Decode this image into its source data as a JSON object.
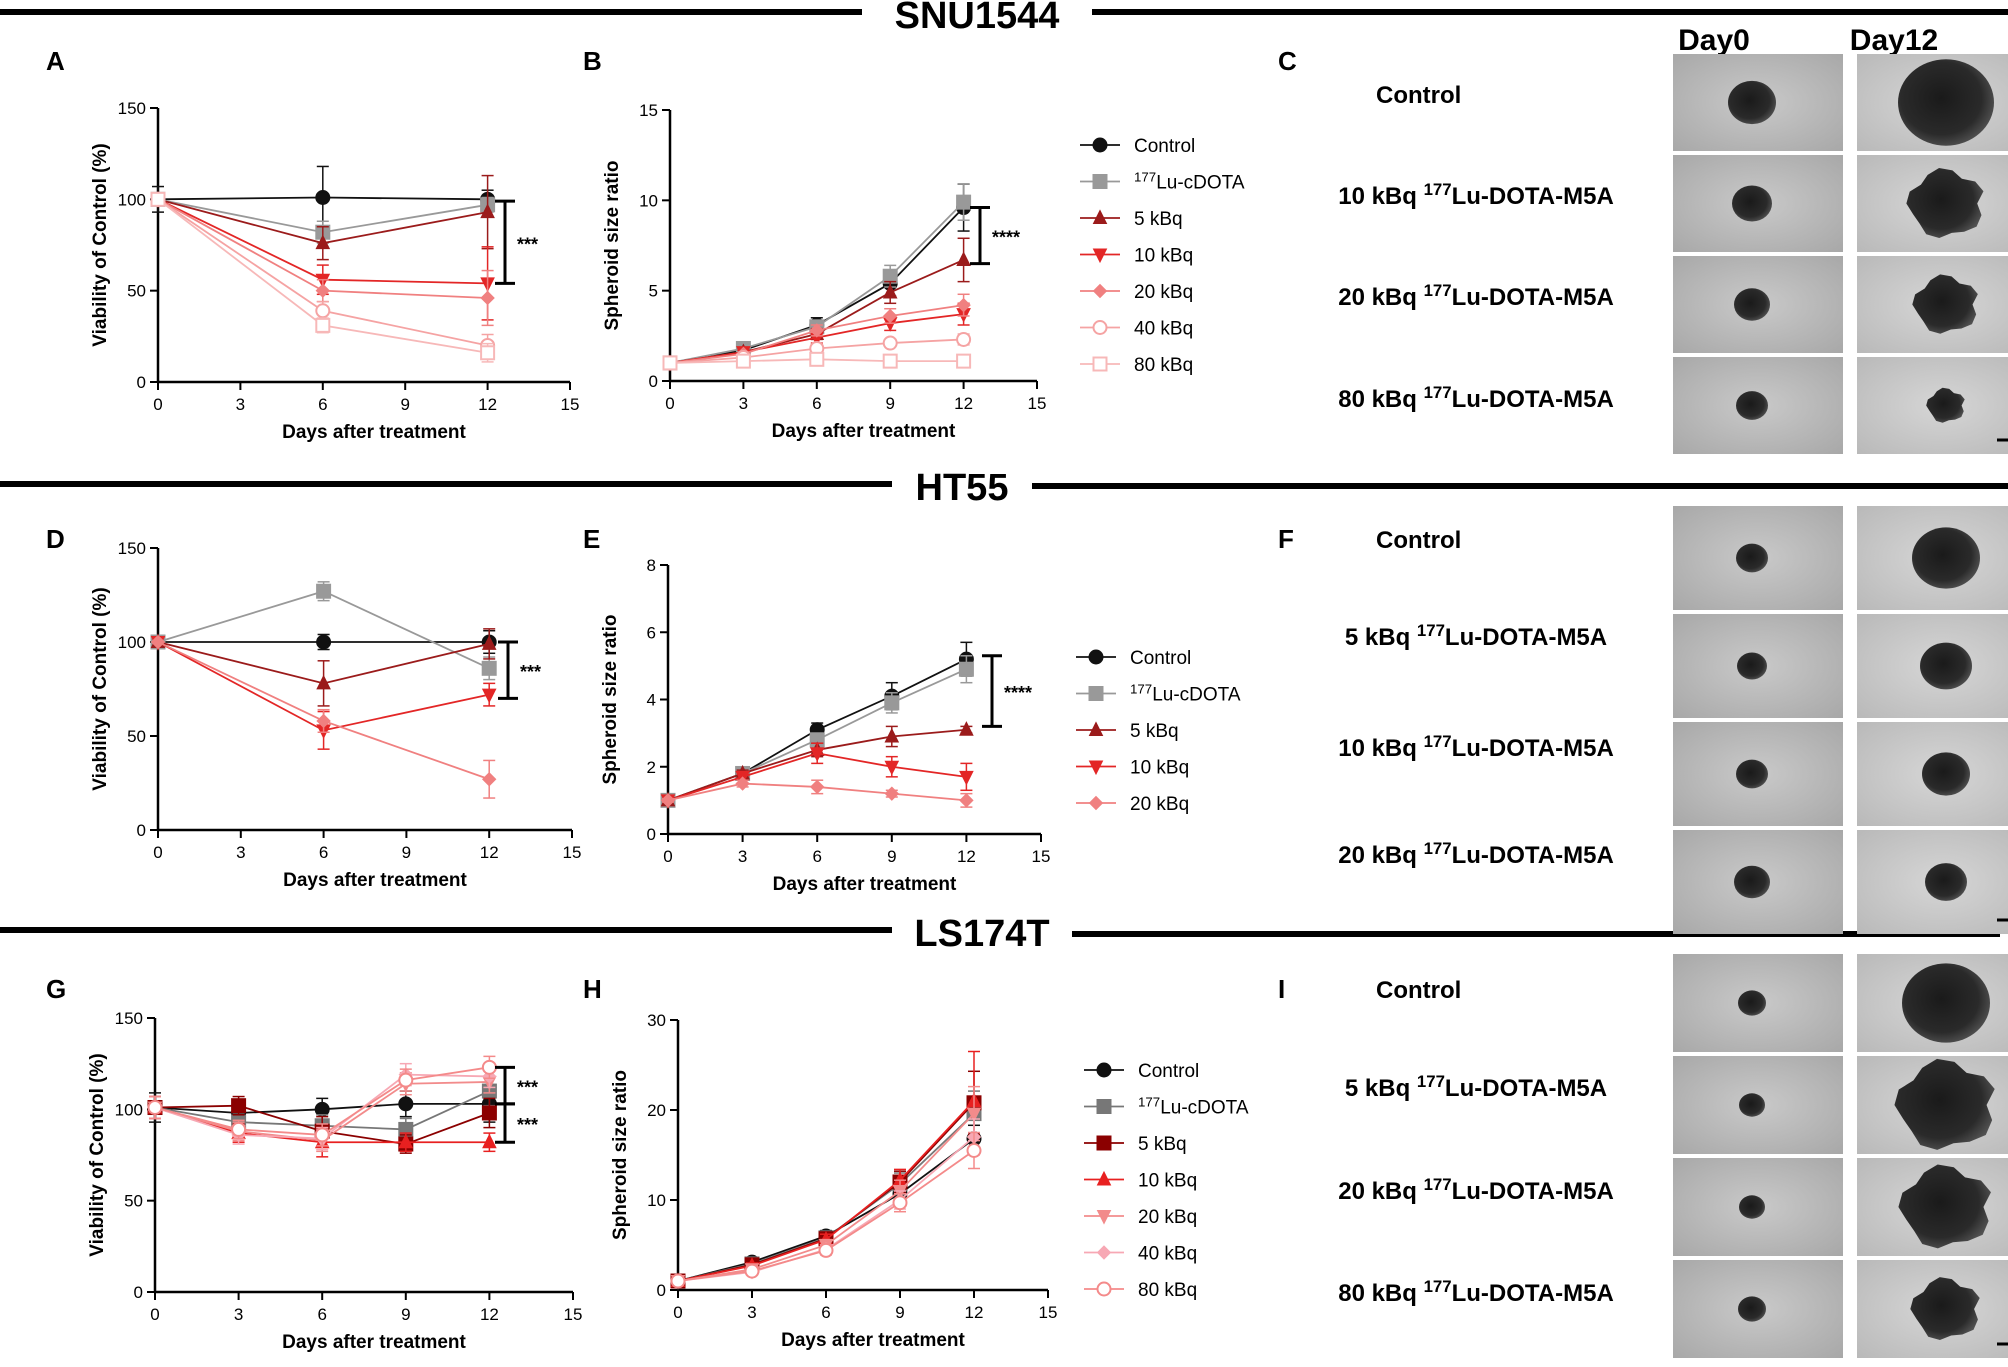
{
  "colors": {
    "control": "#111111",
    "lu_cdota": "#999999",
    "k5_dark": "#9b1b1b",
    "k10": "#e32626",
    "k20": "#f08080",
    "k40": "#f5a3a3",
    "k80": "#f7b8b8",
    "k5_ls": "#8b0000",
    "k10_ls": "#e82020",
    "k20_ls": "#f28b8b",
    "k40_ls": "#f7a8b4",
    "k80_ls": "#f48a8a"
  },
  "rows": [
    {
      "title": "SNU1544"
    },
    {
      "title": "HT55"
    },
    {
      "title": "LS174T"
    }
  ],
  "image_columns": {
    "day0": "Day0",
    "day12": "Day12"
  },
  "chart_data": [
    {
      "id": "A",
      "letter": "A",
      "type": "line",
      "xlabel": "Days after treatment",
      "ylabel": "Viability of Control (%)",
      "xlim": [
        0,
        15
      ],
      "ylim": [
        0,
        150
      ],
      "xticks": [
        "0",
        "3",
        "6",
        "9",
        "12",
        "15"
      ],
      "yticks": [
        "0",
        "50",
        "100",
        "150"
      ],
      "x": [
        0,
        6,
        12
      ],
      "series": [
        {
          "name": "Control",
          "color": "#111111",
          "marker": "circle",
          "values": [
            100,
            101,
            100
          ],
          "err": [
            7,
            17,
            5
          ]
        },
        {
          "name": "177Lu-cDOTA",
          "color": "#999999",
          "marker": "square",
          "values": [
            100,
            82,
            97
          ],
          "err": [
            0,
            6,
            4
          ]
        },
        {
          "name": "5 kBq",
          "color": "#9b1b1b",
          "marker": "triangle",
          "values": [
            100,
            76,
            93
          ],
          "err": [
            0,
            9,
            20
          ]
        },
        {
          "name": "10 kBq",
          "color": "#e32626",
          "marker": "triangle-down",
          "values": [
            100,
            56,
            54
          ],
          "err": [
            0,
            8,
            20
          ]
        },
        {
          "name": "20 kBq",
          "color": "#f08080",
          "marker": "diamond",
          "values": [
            100,
            50,
            46
          ],
          "err": [
            0,
            6,
            15
          ]
        },
        {
          "name": "40 kBq",
          "color": "#f5a3a3",
          "marker": "circle-open",
          "values": [
            100,
            39,
            20
          ],
          "err": [
            0,
            5,
            6
          ]
        },
        {
          "name": "80 kBq",
          "color": "#f7b8b8",
          "marker": "square-open",
          "values": [
            100,
            31,
            16
          ],
          "err": [
            0,
            4,
            5
          ]
        }
      ],
      "significance": [
        {
          "label": "***",
          "from": 99,
          "to": 54
        }
      ]
    },
    {
      "id": "B",
      "letter": "B",
      "type": "line",
      "xlabel": "Days after treatment",
      "ylabel": "Spheroid size ratio",
      "xlim": [
        0,
        15
      ],
      "ylim": [
        0,
        15
      ],
      "xticks": [
        "0",
        "3",
        "6",
        "9",
        "12",
        "15"
      ],
      "yticks": [
        "0",
        "5",
        "10",
        "15"
      ],
      "x": [
        0,
        3,
        6,
        9,
        12
      ],
      "series": [
        {
          "name": "Control",
          "color": "#111111",
          "marker": "circle",
          "values": [
            1,
            1.7,
            3.1,
            5.4,
            9.6
          ],
          "err": [
            0.1,
            0.2,
            0.4,
            0.7,
            1.3
          ]
        },
        {
          "name": "177Lu-cDOTA",
          "color": "#999999",
          "marker": "square",
          "values": [
            1,
            1.8,
            3.0,
            5.8,
            9.9
          ],
          "err": [
            0.1,
            0.2,
            0.3,
            0.6,
            1.0
          ]
        },
        {
          "name": "5 kBq",
          "color": "#9b1b1b",
          "marker": "triangle",
          "values": [
            1,
            1.6,
            2.6,
            4.9,
            6.7
          ],
          "err": [
            0.1,
            0.2,
            0.3,
            0.6,
            1.2
          ]
        },
        {
          "name": "10 kBq",
          "color": "#e32626",
          "marker": "triangle-down",
          "values": [
            1,
            1.6,
            2.4,
            3.2,
            3.7
          ],
          "err": [
            0.1,
            0.1,
            0.3,
            0.4,
            0.6
          ]
        },
        {
          "name": "20 kBq",
          "color": "#f08080",
          "marker": "diamond",
          "values": [
            1,
            1.5,
            2.8,
            3.6,
            4.2
          ],
          "err": [
            0.1,
            0.1,
            0.3,
            0.4,
            0.6
          ]
        },
        {
          "name": "40 kBq",
          "color": "#f5a3a3",
          "marker": "circle-open",
          "values": [
            1,
            1.3,
            1.8,
            2.1,
            2.3
          ],
          "err": [
            0.1,
            0.1,
            0.2,
            0.2,
            0.3
          ]
        },
        {
          "name": "80 kBq",
          "color": "#f7b8b8",
          "marker": "square-open",
          "values": [
            1,
            1.1,
            1.2,
            1.1,
            1.1
          ],
          "err": [
            0.1,
            0.1,
            0.1,
            0.1,
            0.1
          ]
        }
      ],
      "legend": [
        "Control",
        "177Lu-cDOTA",
        "5 kBq",
        "10 kBq",
        "20 kBq",
        "40 kBq",
        "80 kBq"
      ],
      "significance": [
        {
          "label": "****",
          "from": 9.6,
          "to": 6.5
        }
      ]
    },
    {
      "id": "D",
      "letter": "D",
      "type": "line",
      "xlabel": "Days after treatment",
      "ylabel": "Viability of Control (%)",
      "xlim": [
        0,
        15
      ],
      "ylim": [
        0,
        150
      ],
      "xticks": [
        "0",
        "3",
        "6",
        "9",
        "12",
        "15"
      ],
      "yticks": [
        "0",
        "50",
        "100",
        "150"
      ],
      "x": [
        0,
        6,
        12
      ],
      "series": [
        {
          "name": "Control",
          "color": "#111111",
          "marker": "circle",
          "values": [
            100,
            100,
            100
          ],
          "err": [
            2,
            4,
            6
          ]
        },
        {
          "name": "177Lu-cDOTA",
          "color": "#999999",
          "marker": "square",
          "values": [
            100,
            127,
            86
          ],
          "err": [
            0,
            5,
            6
          ]
        },
        {
          "name": "5 kBq",
          "color": "#9b1b1b",
          "marker": "triangle",
          "values": [
            100,
            78,
            99
          ],
          "err": [
            0,
            12,
            8
          ]
        },
        {
          "name": "10 kBq",
          "color": "#e32626",
          "marker": "triangle-down",
          "values": [
            100,
            53,
            72
          ],
          "err": [
            0,
            10,
            6
          ]
        },
        {
          "name": "20 kBq",
          "color": "#f08080",
          "marker": "diamond",
          "values": [
            100,
            58,
            27
          ],
          "err": [
            0,
            6,
            10
          ]
        }
      ],
      "significance": [
        {
          "label": "***",
          "from": 100,
          "to": 70
        }
      ]
    },
    {
      "id": "E",
      "letter": "E",
      "type": "line",
      "xlabel": "Days after treatment",
      "ylabel": "Spheroid size ratio",
      "xlim": [
        0,
        15
      ],
      "ylim": [
        0,
        8
      ],
      "xticks": [
        "0",
        "3",
        "6",
        "9",
        "12",
        "15"
      ],
      "yticks": [
        "0",
        "2",
        "4",
        "6",
        "8"
      ],
      "x": [
        0,
        3,
        6,
        9,
        12
      ],
      "series": [
        {
          "name": "Control",
          "color": "#111111",
          "marker": "circle",
          "values": [
            1,
            1.8,
            3.1,
            4.1,
            5.2
          ],
          "err": [
            0.05,
            0.1,
            0.2,
            0.4,
            0.5
          ]
        },
        {
          "name": "177Lu-cDOTA",
          "color": "#999999",
          "marker": "square",
          "values": [
            1,
            1.8,
            2.8,
            3.9,
            4.9
          ],
          "err": [
            0.05,
            0.1,
            0.2,
            0.3,
            0.4
          ]
        },
        {
          "name": "5 kBq",
          "color": "#9b1b1b",
          "marker": "triangle",
          "values": [
            1,
            1.8,
            2.5,
            2.9,
            3.1
          ],
          "err": [
            0.05,
            0.1,
            0.2,
            0.3,
            0.1
          ]
        },
        {
          "name": "10 kBq",
          "color": "#e32626",
          "marker": "triangle-down",
          "values": [
            1,
            1.7,
            2.4,
            2.0,
            1.7
          ],
          "err": [
            0.05,
            0.1,
            0.3,
            0.3,
            0.4
          ]
        },
        {
          "name": "20 kBq",
          "color": "#f08080",
          "marker": "diamond",
          "values": [
            1,
            1.5,
            1.4,
            1.2,
            1.0
          ],
          "err": [
            0.05,
            0.1,
            0.2,
            0.1,
            0.2
          ]
        }
      ],
      "legend": [
        "Control",
        "177Lu-cDOTA",
        "5 kBq",
        "10 kBq",
        "20 kBq"
      ],
      "significance": [
        {
          "label": "****",
          "from": 5.3,
          "to": 3.2
        }
      ]
    },
    {
      "id": "G",
      "letter": "G",
      "type": "line",
      "xlabel": "Days after treatment",
      "ylabel": "Viability of Control (%)",
      "xlim": [
        0,
        15
      ],
      "ylim": [
        0,
        150
      ],
      "xticks": [
        "0",
        "3",
        "6",
        "9",
        "12",
        "15"
      ],
      "yticks": [
        "0",
        "50",
        "100",
        "150"
      ],
      "x": [
        0,
        3,
        6,
        9,
        12
      ],
      "series": [
        {
          "name": "Control",
          "color": "#111111",
          "marker": "circle",
          "values": [
            101,
            98,
            100,
            103,
            103
          ],
          "err": [
            8,
            5,
            6,
            7,
            10
          ]
        },
        {
          "name": "177Lu-cDOTA",
          "color": "#777777",
          "marker": "square",
          "values": [
            101,
            93,
            91,
            89,
            110
          ],
          "err": [
            6,
            5,
            6,
            6,
            8
          ]
        },
        {
          "name": "5 kBq",
          "color": "#8b0000",
          "marker": "square",
          "values": [
            101,
            102,
            88,
            81,
            98
          ],
          "err": [
            6,
            5,
            8,
            5,
            8
          ]
        },
        {
          "name": "10 kBq",
          "color": "#e82020",
          "marker": "triangle",
          "values": [
            101,
            87,
            82,
            82,
            82
          ],
          "err": [
            6,
            5,
            8,
            5,
            5
          ]
        },
        {
          "name": "20 kBq",
          "color": "#f28b8b",
          "marker": "triangle-down",
          "values": [
            101,
            88,
            83,
            114,
            115
          ],
          "err": [
            6,
            5,
            6,
            6,
            6
          ]
        },
        {
          "name": "40 kBq",
          "color": "#f7a8b4",
          "marker": "diamond",
          "values": [
            101,
            86,
            84,
            119,
            118
          ],
          "err": [
            6,
            5,
            6,
            6,
            6
          ]
        },
        {
          "name": "80 kBq",
          "color": "#f48a8a",
          "marker": "circle-open",
          "values": [
            101,
            89,
            86,
            116,
            123
          ],
          "err": [
            6,
            5,
            6,
            6,
            6
          ]
        }
      ],
      "significance": [
        {
          "label": "***",
          "from": 123,
          "to": 103
        },
        {
          "label": "***",
          "from": 103,
          "to": 82
        }
      ]
    },
    {
      "id": "H",
      "letter": "H",
      "type": "line",
      "xlabel": "Days after treatment",
      "ylabel": "Spheroid size ratio",
      "xlim": [
        0,
        15
      ],
      "ylim": [
        0,
        30
      ],
      "xticks": [
        "0",
        "3",
        "6",
        "9",
        "12",
        "15"
      ],
      "yticks": [
        "0",
        "10",
        "20",
        "30"
      ],
      "x": [
        0,
        3,
        6,
        9,
        12
      ],
      "series": [
        {
          "name": "Control",
          "color": "#111111",
          "marker": "circle",
          "values": [
            1,
            3.1,
            6.0,
            10.7,
            16.8
          ],
          "err": [
            0.2,
            0.3,
            0.6,
            1.0,
            1.5
          ]
        },
        {
          "name": "177Lu-cDOTA",
          "color": "#777777",
          "marker": "square",
          "values": [
            1,
            2.9,
            5.8,
            11.8,
            19.6
          ],
          "err": [
            0.2,
            0.3,
            0.6,
            1.2,
            2.5
          ]
        },
        {
          "name": "5 kBq",
          "color": "#8b0000",
          "marker": "square",
          "values": [
            1,
            2.8,
            5.7,
            12.0,
            20.8
          ],
          "err": [
            0.2,
            0.3,
            0.6,
            1.2,
            3.5
          ]
        },
        {
          "name": "10 kBq",
          "color": "#e82020",
          "marker": "triangle",
          "values": [
            1,
            2.7,
            5.6,
            12.2,
            21.0
          ],
          "err": [
            0.2,
            0.3,
            0.6,
            1.2,
            5.5
          ]
        },
        {
          "name": "20 kBq",
          "color": "#f28b8b",
          "marker": "triangle-down",
          "values": [
            1,
            2.3,
            5.0,
            11.0,
            19.6
          ],
          "err": [
            0.2,
            0.3,
            0.6,
            1.2,
            3.0
          ]
        },
        {
          "name": "40 kBq",
          "color": "#f7a8b4",
          "marker": "diamond",
          "values": [
            1,
            2.0,
            4.5,
            10.0,
            17.0
          ],
          "err": [
            0.2,
            0.3,
            0.5,
            1.0,
            2.0
          ]
        },
        {
          "name": "80 kBq",
          "color": "#f48a8a",
          "marker": "circle-open",
          "values": [
            1,
            2.1,
            4.4,
            9.7,
            15.5
          ],
          "err": [
            0.2,
            0.3,
            0.5,
            1.0,
            2.0
          ]
        }
      ],
      "legend": [
        "Control",
        "177Lu-cDOTA",
        "5 kBq",
        "10 kBq",
        "20 kBq",
        "40 kBq",
        "80 kBq"
      ],
      "significance": []
    }
  ],
  "image_panels": [
    {
      "letter": "C",
      "conditions": [
        "Control",
        "10 kBq 177Lu-DOTA-M5A",
        "20 kBq 177Lu-DOTA-M5A",
        "80 kBq 177Lu-DOTA-M5A"
      ]
    },
    {
      "letter": "F",
      "conditions": [
        "Control",
        "5 kBq 177Lu-DOTA-M5A",
        "10 kBq 177Lu-DOTA-M5A",
        "20 kBq 177Lu-DOTA-M5A"
      ]
    },
    {
      "letter": "I",
      "conditions": [
        "Control",
        "5 kBq 177Lu-DOTA-M5A",
        "20 kBq 177Lu-DOTA-M5A",
        "80 kBq 177Lu-DOTA-M5A"
      ]
    }
  ]
}
